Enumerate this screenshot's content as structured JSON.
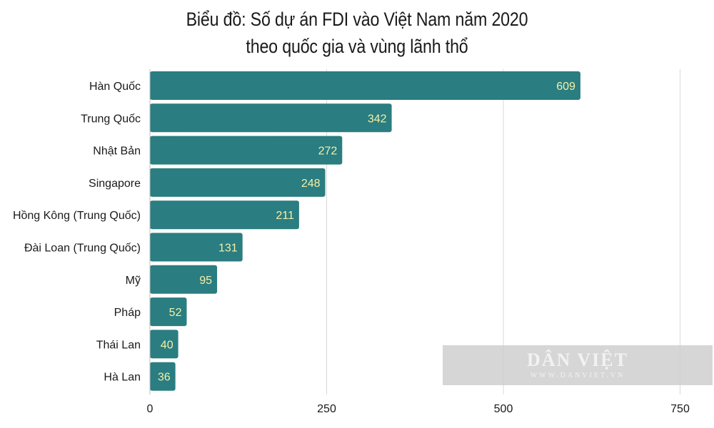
{
  "title": {
    "line1": "Biểu đồ: Số dự án FDI vào Việt Nam năm 2020",
    "line2": "theo quốc gia và vùng lãnh thổ"
  },
  "watermark": {
    "main": "DÂN VIỆT",
    "sub": "WWW.DANVIET.VN"
  },
  "colors": {
    "bar": "#2a7d80",
    "value_label": "#f5f0a8",
    "grid": "#d9d9d9",
    "text": "#1a1a1a"
  },
  "chart_data": {
    "type": "bar",
    "orientation": "horizontal",
    "categories": [
      "Hàn Quốc",
      "Trung Quốc",
      "Nhật Bản",
      "Singapore",
      "Hồng Kông (Trung Quốc)",
      "Đài Loan (Trung Quốc)",
      "Mỹ",
      "Pháp",
      "Thái Lan",
      "Hà Lan"
    ],
    "values": [
      609,
      342,
      272,
      248,
      211,
      131,
      95,
      52,
      40,
      36
    ],
    "xlim": [
      0,
      800
    ],
    "xticks": [
      0,
      250,
      500,
      750
    ],
    "grid": true,
    "data_labels": true
  }
}
